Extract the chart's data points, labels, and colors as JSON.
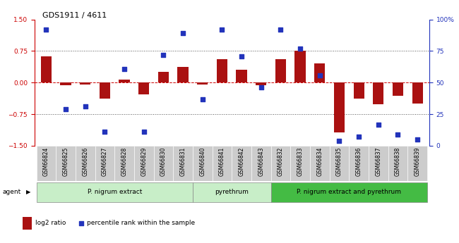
{
  "title": "GDS1911 / 4611",
  "samples": [
    "GSM66824",
    "GSM66825",
    "GSM66826",
    "GSM66827",
    "GSM66828",
    "GSM66829",
    "GSM66830",
    "GSM66831",
    "GSM66840",
    "GSM66841",
    "GSM66842",
    "GSM66843",
    "GSM66832",
    "GSM66833",
    "GSM66834",
    "GSM66835",
    "GSM66836",
    "GSM66837",
    "GSM66838",
    "GSM66839"
  ],
  "log2_ratio": [
    0.62,
    -0.07,
    -0.04,
    -0.38,
    0.08,
    -0.28,
    0.25,
    0.38,
    -0.04,
    0.55,
    0.3,
    -0.06,
    0.55,
    0.75,
    0.45,
    -1.18,
    -0.38,
    -0.52,
    -0.32,
    -0.5
  ],
  "percentile": [
    92,
    29,
    31,
    11,
    61,
    11,
    72,
    89,
    37,
    92,
    71,
    46,
    92,
    77,
    56,
    4,
    7,
    17,
    9,
    5
  ],
  "groups": [
    {
      "label": "P. nigrum extract",
      "start": 0,
      "end": 8
    },
    {
      "label": "pyrethrum",
      "start": 8,
      "end": 12
    },
    {
      "label": "P. nigrum extract and pyrethrum",
      "start": 12,
      "end": 20
    }
  ],
  "group_colors": [
    "#c8eec8",
    "#c8eec8",
    "#44bb44"
  ],
  "bar_color": "#aa1111",
  "dot_color": "#2233bb",
  "zero_line_color": "#cc0000",
  "dotted_line_color": "#555555",
  "ylim_left": [
    -1.5,
    1.5
  ],
  "ylim_right": [
    0,
    100
  ],
  "yticks_left": [
    -1.5,
    -0.75,
    0,
    0.75,
    1.5
  ],
  "yticks_right": [
    0,
    25,
    50,
    75,
    100
  ],
  "bar_width": 0.55,
  "dot_size": 16,
  "title_fontsize": 8,
  "tick_fontsize": 6.5,
  "label_fontsize": 5.5,
  "group_fontsize": 6.5,
  "legend_fontsize": 6.5
}
